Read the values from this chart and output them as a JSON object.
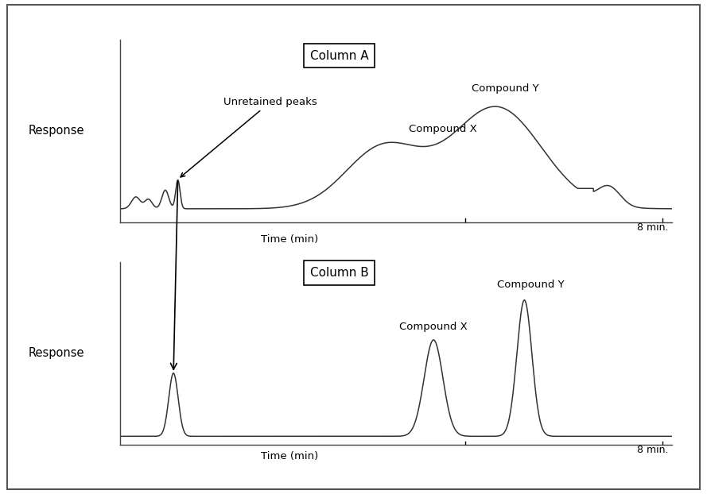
{
  "fig_width": 8.89,
  "fig_height": 6.22,
  "bg_color": "#ffffff",
  "line_color": "#333333",
  "panel_A": {
    "title": "Column A",
    "ylabel": "Response",
    "xlabel": "Time (min)",
    "eight_min_label": "8 min.",
    "compound_x_label": "Compound X",
    "compound_y_label": "Compound Y",
    "unretained_label": "Unretained peaks"
  },
  "panel_B": {
    "title": "Column B",
    "ylabel": "Response",
    "xlabel": "Time (min)",
    "eight_min_label": "8 min.",
    "compound_x_label": "Compound X",
    "compound_y_label": "Compound Y"
  }
}
